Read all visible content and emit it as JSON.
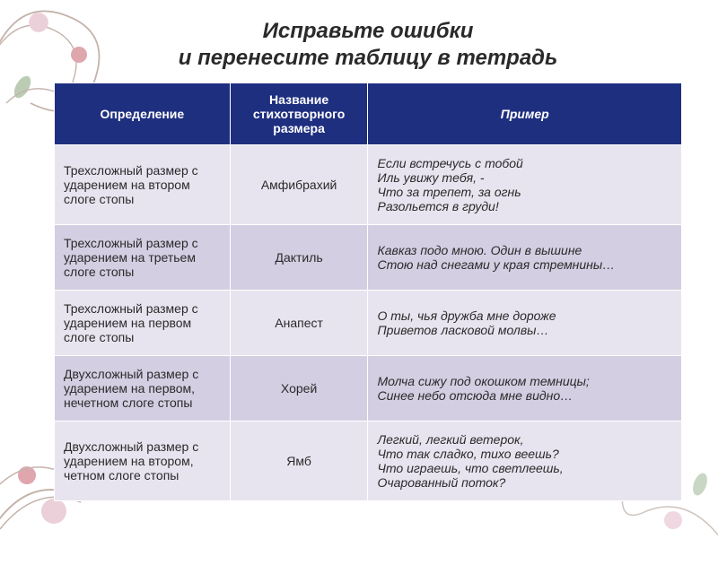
{
  "title_line1": "Исправьте ошибки",
  "title_line2": "и перенесите таблицу в тетрадь",
  "title_fontsize": 24,
  "title_color": "#2a2a2a",
  "header_bg": "#1f2f7f",
  "header_color": "#ffffff",
  "row_odd_bg": "#e8e4ef",
  "row_even_bg": "#d4cee2",
  "cell_text_color": "#2a2a2a",
  "border_color": "#ffffff",
  "columns": {
    "def": "Определение",
    "name": "Название стихотворного размера",
    "ex": "Пример"
  },
  "rows": [
    {
      "def": "Трехсложный размер с ударением на втором слоге стопы",
      "name": "Амфибрахий",
      "ex": "Если встречусь с тобой\nИль увижу тебя, -\nЧто за трепет, за огнь\nРазольется в груди!"
    },
    {
      "def": "Трехсложный размер с ударением на третьем слоге стопы",
      "name": "Дактиль",
      "ex": "Кавказ подо мною. Один в вышине\nСтою над снегами у края стремнины…"
    },
    {
      "def": "Трехсложный размер с ударением на первом слоге стопы",
      "name": "Анапест",
      "ex": "О ты, чья дружба мне дороже\nПриветов ласковой молвы…"
    },
    {
      "def": "Двухсложный размер с ударением на первом, нечетном слоге стопы",
      "name": "Хорей",
      "ex": "Молча сижу под окошком темницы;\nСинее небо отсюда мне видно…"
    },
    {
      "def": "Двухсложный размер с ударением на втором, четном слоге стопы",
      "name": "Ямб",
      "ex": "Легкий, легкий ветерок,\nЧто так сладко, тихо веешь?\nЧто играешь, что светлеешь,\nОчарованный поток?"
    }
  ],
  "decoration": {
    "swirl_color": "#8a6a5a",
    "flower_pink": "#d9a0b5",
    "flower_red": "#c05060",
    "leaf_green": "#7a9a6a"
  }
}
